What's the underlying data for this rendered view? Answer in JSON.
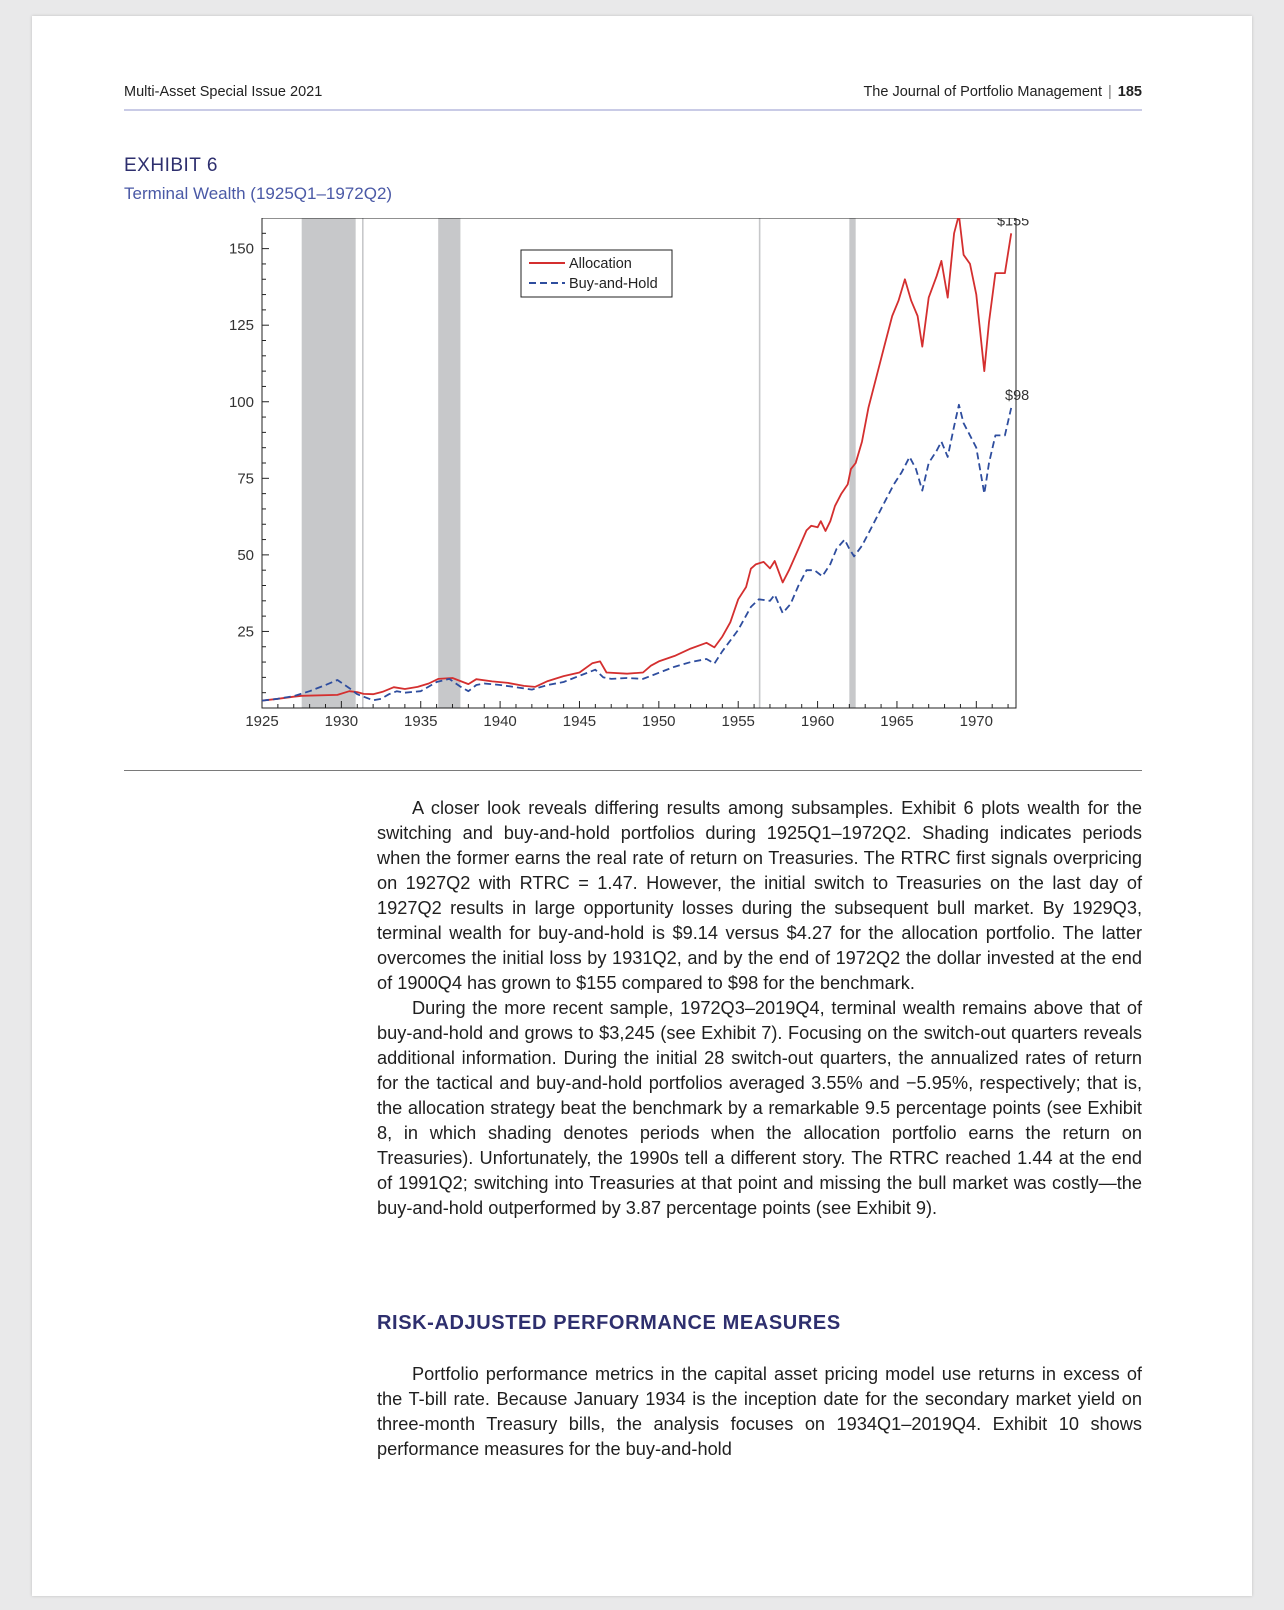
{
  "header": {
    "issue": "Multi-Asset Special Issue 2021",
    "journal": "The Journal of Portfolio Management",
    "page_number": "185"
  },
  "exhibit": {
    "label": "EXHIBIT 6",
    "title": "Terminal Wealth (1925Q1–1972Q2)"
  },
  "chart_data": {
    "type": "line",
    "title": "Terminal Wealth (1925Q1–1972Q2)",
    "xlabel": "",
    "ylabel": "",
    "xlim": [
      1925,
      1972.5
    ],
    "ylim": [
      0,
      160
    ],
    "x_ticks": [
      1925,
      1930,
      1935,
      1940,
      1945,
      1950,
      1955,
      1960,
      1965,
      1970
    ],
    "y_ticks": [
      25,
      50,
      75,
      100,
      125,
      150
    ],
    "grid": false,
    "legend_position": "top-center",
    "shaded_periods": [
      [
        1927.5,
        1930.9
      ],
      [
        1931.3,
        1931.4
      ],
      [
        1936.1,
        1937.5
      ],
      [
        1956.3,
        1956.4
      ],
      [
        1962.0,
        1962.4
      ]
    ],
    "annotations": [
      {
        "text": "$155",
        "x": 1972.2,
        "y": 155
      },
      {
        "text": "$98",
        "x": 1972.2,
        "y": 98
      }
    ],
    "series": [
      {
        "name": "Allocation",
        "color": "#d42f2f",
        "style": "solid",
        "points": [
          [
            1925.0,
            2.4
          ],
          [
            1926.0,
            3.0
          ],
          [
            1927.0,
            3.7
          ],
          [
            1927.5,
            4.0
          ],
          [
            1929.75,
            4.27
          ],
          [
            1930.5,
            5.5
          ],
          [
            1931.0,
            5.2
          ],
          [
            1931.4,
            4.6
          ],
          [
            1932.0,
            4.5
          ],
          [
            1932.6,
            5.3
          ],
          [
            1933.3,
            6.8
          ],
          [
            1934.0,
            6.2
          ],
          [
            1934.8,
            6.9
          ],
          [
            1935.5,
            8.0
          ],
          [
            1936.1,
            9.5
          ],
          [
            1937.0,
            9.8
          ],
          [
            1938.0,
            7.8
          ],
          [
            1938.5,
            9.4
          ],
          [
            1939.5,
            8.7
          ],
          [
            1940.5,
            8.2
          ],
          [
            1941.5,
            7.2
          ],
          [
            1942.2,
            6.9
          ],
          [
            1943.0,
            8.8
          ],
          [
            1944.0,
            10.4
          ],
          [
            1945.0,
            11.6
          ],
          [
            1945.8,
            14.6
          ],
          [
            1946.3,
            15.2
          ],
          [
            1946.7,
            11.6
          ],
          [
            1948.0,
            11.2
          ],
          [
            1949.0,
            11.6
          ],
          [
            1949.5,
            13.8
          ],
          [
            1950.0,
            15.2
          ],
          [
            1951.0,
            17.0
          ],
          [
            1952.0,
            19.4
          ],
          [
            1953.0,
            21.3
          ],
          [
            1953.5,
            19.8
          ],
          [
            1954.0,
            23.3
          ],
          [
            1954.5,
            28.0
          ],
          [
            1955.0,
            35.5
          ],
          [
            1955.5,
            39.5
          ],
          [
            1955.8,
            45.5
          ],
          [
            1956.1,
            46.9
          ],
          [
            1956.6,
            47.7
          ],
          [
            1957.0,
            45.6
          ],
          [
            1957.3,
            48.0
          ],
          [
            1957.8,
            41.0
          ],
          [
            1958.2,
            45.0
          ],
          [
            1958.8,
            52.0
          ],
          [
            1959.3,
            58.0
          ],
          [
            1959.6,
            59.5
          ],
          [
            1960.0,
            59.0
          ],
          [
            1960.2,
            61.0
          ],
          [
            1960.5,
            57.8
          ],
          [
            1960.8,
            61.0
          ],
          [
            1961.1,
            66.0
          ],
          [
            1961.5,
            70.0
          ],
          [
            1961.9,
            73.0
          ],
          [
            1962.1,
            78.0
          ],
          [
            1962.4,
            80.0
          ],
          [
            1962.8,
            87.0
          ],
          [
            1963.2,
            98.0
          ],
          [
            1963.7,
            108.0
          ],
          [
            1964.2,
            118.0
          ],
          [
            1964.7,
            128.0
          ],
          [
            1965.1,
            133.0
          ],
          [
            1965.5,
            140.0
          ],
          [
            1965.9,
            133.0
          ],
          [
            1966.3,
            128.0
          ],
          [
            1966.6,
            118.0
          ],
          [
            1967.0,
            134.0
          ],
          [
            1967.5,
            141.0
          ],
          [
            1967.8,
            146.0
          ],
          [
            1968.2,
            134.0
          ],
          [
            1968.6,
            155.0
          ],
          [
            1968.9,
            161.0
          ],
          [
            1969.2,
            148.0
          ],
          [
            1969.6,
            145.0
          ],
          [
            1970.0,
            135.0
          ],
          [
            1970.2,
            125.0
          ],
          [
            1970.5,
            110.0
          ],
          [
            1970.8,
            126.0
          ],
          [
            1971.2,
            142.0
          ],
          [
            1971.8,
            142.0
          ],
          [
            1972.2,
            155.0
          ]
        ]
      },
      {
        "name": "Buy-and-Hold",
        "color": "#2e4d9e",
        "style": "dashed",
        "points": [
          [
            1925.0,
            2.4
          ],
          [
            1926.0,
            3.0
          ],
          [
            1927.0,
            3.9
          ],
          [
            1928.0,
            5.5
          ],
          [
            1929.0,
            7.5
          ],
          [
            1929.75,
            9.14
          ],
          [
            1930.5,
            6.5
          ],
          [
            1931.0,
            4.5
          ],
          [
            1931.5,
            3.5
          ],
          [
            1932.0,
            2.5
          ],
          [
            1932.5,
            3.0
          ],
          [
            1933.0,
            4.5
          ],
          [
            1933.5,
            5.5
          ],
          [
            1934.0,
            5.0
          ],
          [
            1935.0,
            5.5
          ],
          [
            1935.5,
            7.0
          ],
          [
            1936.0,
            8.5
          ],
          [
            1936.8,
            9.5
          ],
          [
            1937.5,
            7.0
          ],
          [
            1938.0,
            5.5
          ],
          [
            1938.5,
            7.5
          ],
          [
            1939.0,
            8.0
          ],
          [
            1940.0,
            7.5
          ],
          [
            1941.0,
            6.8
          ],
          [
            1942.0,
            6.0
          ],
          [
            1943.0,
            7.5
          ],
          [
            1944.0,
            8.5
          ],
          [
            1945.0,
            10.5
          ],
          [
            1946.0,
            12.5
          ],
          [
            1946.5,
            10.0
          ],
          [
            1947.0,
            9.5
          ],
          [
            1948.0,
            9.8
          ],
          [
            1949.0,
            9.5
          ],
          [
            1950.0,
            11.5
          ],
          [
            1951.0,
            13.5
          ],
          [
            1952.0,
            15.0
          ],
          [
            1953.0,
            16.0
          ],
          [
            1953.5,
            14.5
          ],
          [
            1954.0,
            18.5
          ],
          [
            1955.0,
            25.5
          ],
          [
            1955.8,
            33.0
          ],
          [
            1956.3,
            35.5
          ],
          [
            1957.0,
            35.0
          ],
          [
            1957.3,
            37.0
          ],
          [
            1957.8,
            31.0
          ],
          [
            1958.3,
            34.0
          ],
          [
            1958.8,
            40.0
          ],
          [
            1959.3,
            45.0
          ],
          [
            1959.8,
            45.0
          ],
          [
            1960.3,
            43.0
          ],
          [
            1960.8,
            47.0
          ],
          [
            1961.2,
            52.0
          ],
          [
            1961.7,
            55.0
          ],
          [
            1962.0,
            52.0
          ],
          [
            1962.3,
            49.5
          ],
          [
            1962.8,
            53.0
          ],
          [
            1963.3,
            58.0
          ],
          [
            1963.8,
            63.0
          ],
          [
            1964.3,
            68.0
          ],
          [
            1964.8,
            73.0
          ],
          [
            1965.3,
            77.0
          ],
          [
            1965.8,
            82.0
          ],
          [
            1966.2,
            78.0
          ],
          [
            1966.6,
            71.0
          ],
          [
            1967.0,
            80.0
          ],
          [
            1967.5,
            84.0
          ],
          [
            1967.8,
            87.0
          ],
          [
            1968.2,
            82.0
          ],
          [
            1968.6,
            92.0
          ],
          [
            1968.9,
            99.0
          ],
          [
            1969.2,
            93.0
          ],
          [
            1969.6,
            89.0
          ],
          [
            1970.0,
            85.0
          ],
          [
            1970.5,
            70.0
          ],
          [
            1970.8,
            80.0
          ],
          [
            1971.2,
            89.0
          ],
          [
            1971.8,
            89.0
          ],
          [
            1972.2,
            98.0
          ]
        ]
      }
    ]
  },
  "body": {
    "p1": "A closer look reveals differing results among subsamples. Exhibit 6 plots wealth for the switching and buy-and-hold portfolios during 1925Q1–1972Q2. Shading indicates periods when the former earns the real rate of return on Treasuries. The RTRC first signals overpricing on 1927Q2 with RTRC = 1.47. However, the initial switch to Treasuries on the last day of 1927Q2 results in large opportunity losses during the subsequent bull market. By 1929Q3, terminal wealth for buy-and-hold is $9.14 versus $4.27 for the allocation portfolio. The latter overcomes the initial loss by 1931Q2, and by the end of 1972Q2 the dollar invested at the end of 1900Q4 has grown to $155 compared to $98 for the benchmark.",
    "p2": "During the more recent sample, 1972Q3–2019Q4, terminal wealth remains above that of buy-and-hold and grows to $3,245 (see Exhibit 7). Focusing on the switch-out quarters reveals additional information. During the initial 28 switch-out quarters, the annualized rates of return for the tactical and buy-and-hold portfolios averaged 3.55% and −5.95%, respectively; that is, the allocation strategy beat the benchmark by a remarkable 9.5 percentage points (see Exhibit 8, in which shading denotes periods when the allocation portfolio earns the return on Treasuries). Unfortunately, the 1990s tell a different story. The RTRC reached 1.44 at the end of 1991Q2; switching into Treasuries at that point and missing the bull market was costly—the buy-and-hold outperformed by 3.87 percentage points (see Exhibit 9).",
    "section_heading": "RISK-ADJUSTED PERFORMANCE MEASURES",
    "p3": "Portfolio performance metrics in the capital asset pricing model use returns in excess of the T-bill rate. Because January 1934 is the inception date for the secondary market yield on three-month Treasury bills, the analysis focuses on 1934Q1–2019Q4. Exhibit 10 shows performance measures for the buy-and-hold"
  }
}
